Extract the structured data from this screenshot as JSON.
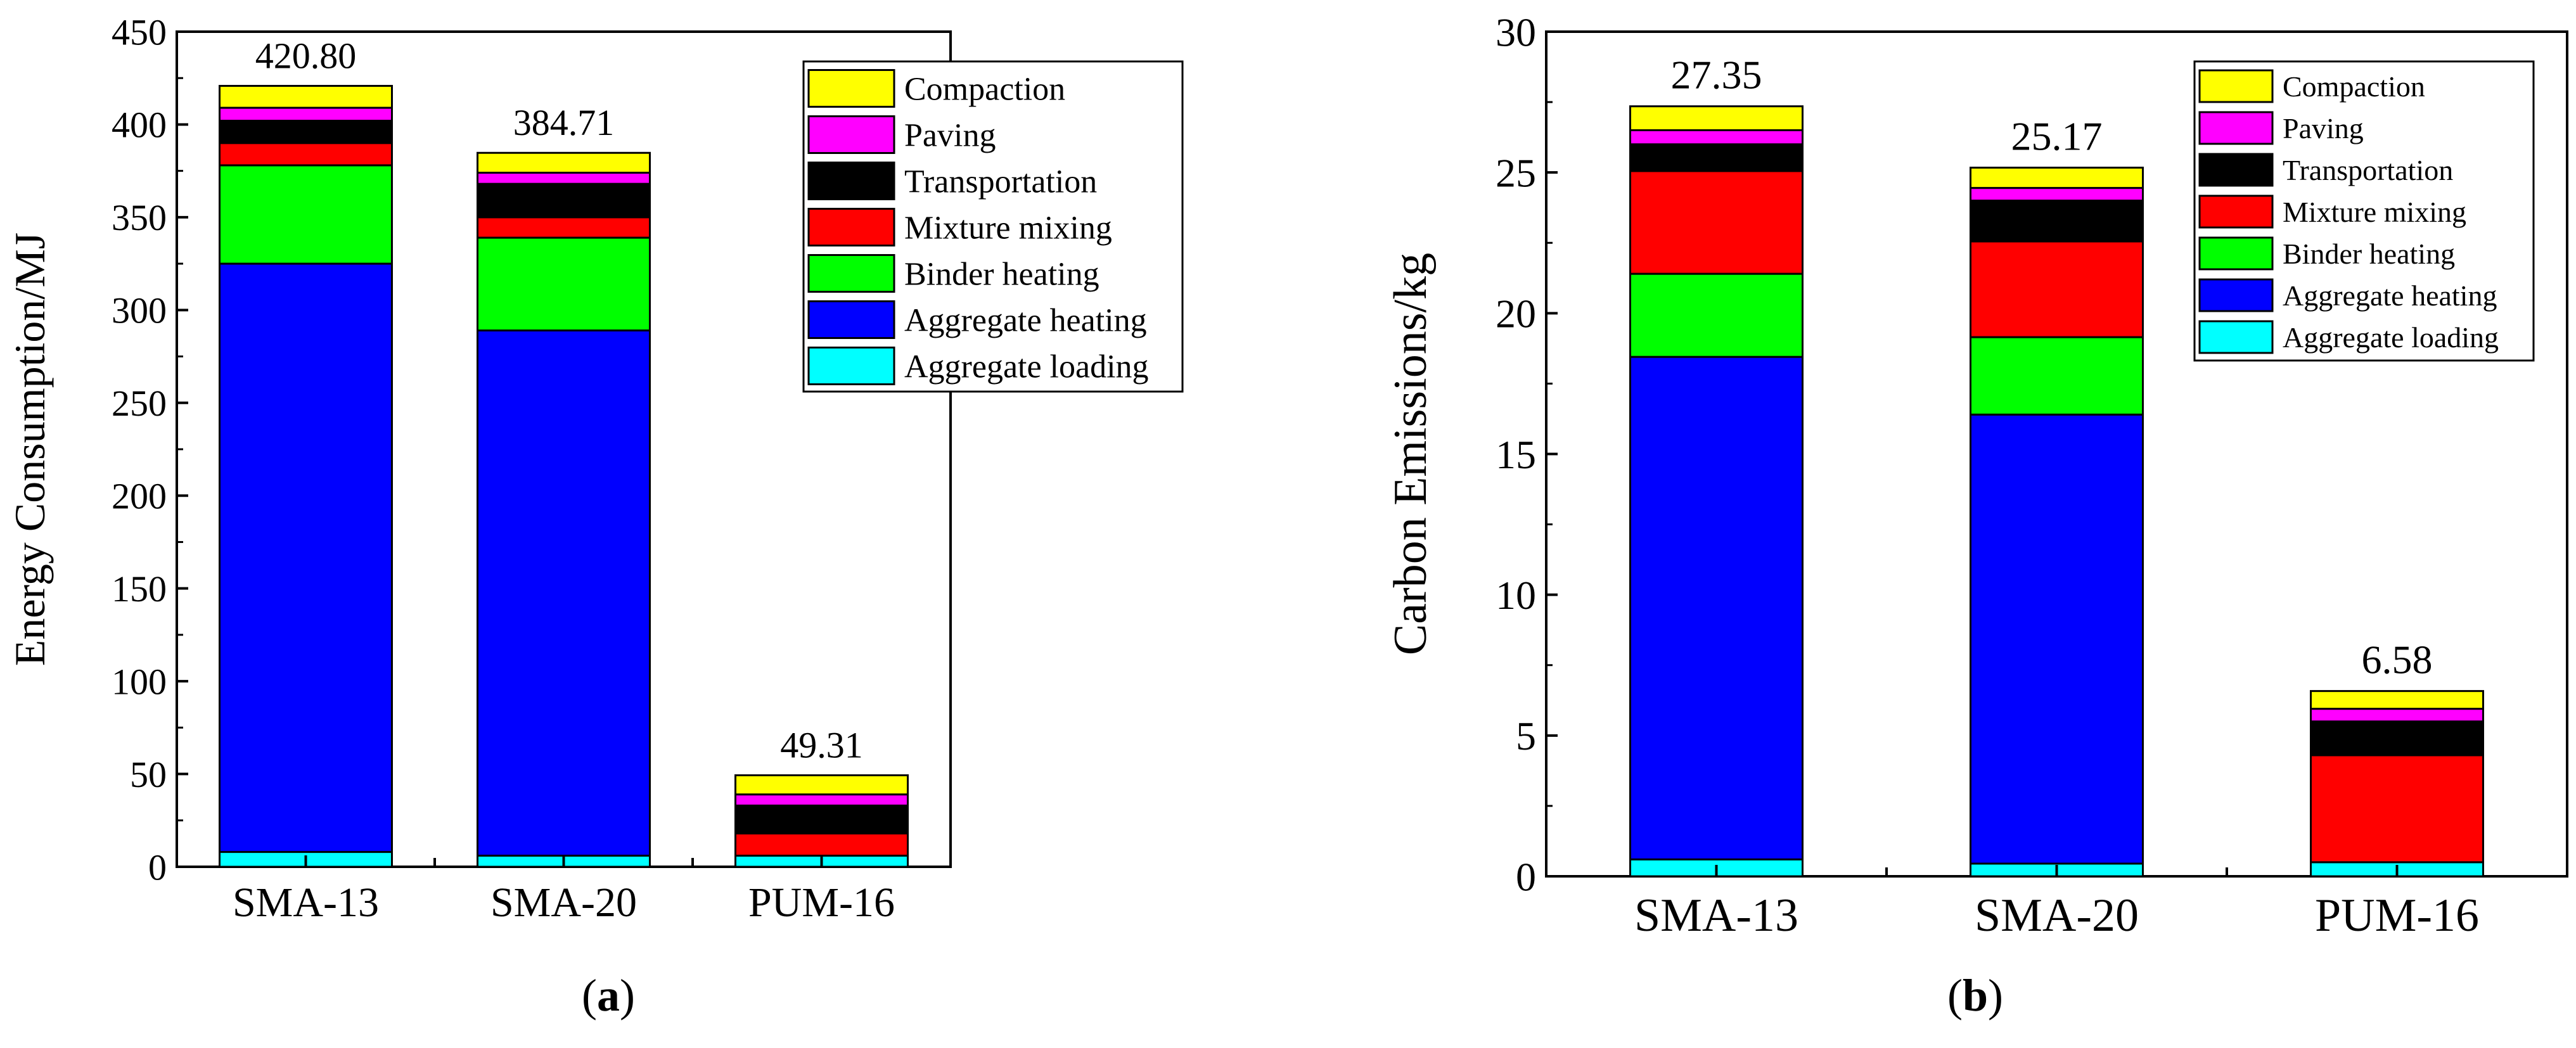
{
  "stack_labels": [
    "Aggregate loading",
    "Aggregate heating",
    "Binder heating",
    "Mixture mixing",
    "Transportation",
    "Paving",
    "Compaction"
  ],
  "stack_colors": [
    "#00ffff",
    "#0000ff",
    "#00ff00",
    "#ff0000",
    "#000000",
    "#ff00ff",
    "#ffff00"
  ],
  "panels": [
    {
      "caption_open": "(",
      "caption_letter": "a",
      "caption_close": ")"
    },
    {
      "caption_open": "(",
      "caption_letter": "b",
      "caption_close": ")"
    }
  ],
  "chart_data": [
    {
      "type": "bar",
      "stacked": true,
      "title": "",
      "xlabel": "",
      "ylabel": "Energy Consumption/MJ",
      "ylim": [
        0,
        450
      ],
      "yticks": [
        "0",
        "50",
        "100",
        "150",
        "200",
        "250",
        "300",
        "350",
        "400",
        "450"
      ],
      "categories": [
        "SMA-13",
        "SMA-20",
        "PUM-16"
      ],
      "totals": [
        "420.80",
        "384.71",
        "49.31"
      ],
      "series": [
        {
          "name": "Aggregate loading",
          "values": [
            8,
            6,
            6
          ]
        },
        {
          "name": "Aggregate heating",
          "values": [
            317,
            283,
            0
          ]
        },
        {
          "name": "Binder heating",
          "values": [
            53,
            50,
            0
          ]
        },
        {
          "name": "Mixture mixing",
          "values": [
            12,
            11,
            12
          ]
        },
        {
          "name": "Transportation",
          "values": [
            12,
            18,
            15
          ]
        },
        {
          "name": "Paving",
          "values": [
            7,
            6,
            6
          ]
        },
        {
          "name": "Compaction",
          "values": [
            11.8,
            10.71,
            10.31
          ]
        }
      ],
      "legend_position": "top-right"
    },
    {
      "type": "bar",
      "stacked": true,
      "title": "",
      "xlabel": "",
      "ylabel": "Carbon Emissions/kg",
      "ylim": [
        0,
        30
      ],
      "yticks": [
        "0",
        "5",
        "10",
        "15",
        "20",
        "25",
        "30"
      ],
      "categories": [
        "SMA-13",
        "SMA-20",
        "PUM-16"
      ],
      "totals": [
        "27.35",
        "25.17",
        "6.58"
      ],
      "series": [
        {
          "name": "Aggregate loading",
          "values": [
            0.6,
            0.45,
            0.5
          ]
        },
        {
          "name": "Aggregate heating",
          "values": [
            17.85,
            15.95,
            0
          ]
        },
        {
          "name": "Binder heating",
          "values": [
            2.95,
            2.75,
            0
          ]
        },
        {
          "name": "Mixture mixing",
          "values": [
            3.65,
            3.4,
            3.8
          ]
        },
        {
          "name": "Transportation",
          "values": [
            0.95,
            1.45,
            1.2
          ]
        },
        {
          "name": "Paving",
          "values": [
            0.5,
            0.45,
            0.45
          ]
        },
        {
          "name": "Compaction",
          "values": [
            0.85,
            0.72,
            0.63
          ]
        }
      ],
      "legend_position": "top-right"
    }
  ]
}
